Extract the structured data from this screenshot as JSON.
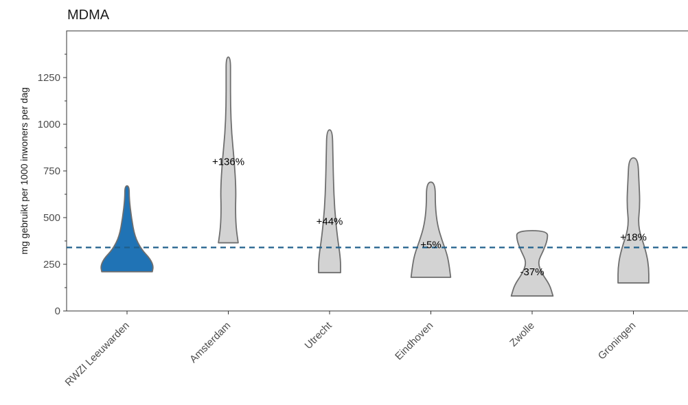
{
  "chart_data": {
    "type": "violin",
    "title": "MDMA",
    "xlabel": "",
    "ylabel": "mg gebruikt per 1000 inwoners per dag",
    "ylim": [
      0,
      1500
    ],
    "yticks": [
      0,
      250,
      500,
      750,
      1000,
      1250
    ],
    "reference_line": 340,
    "reference_color": "#1f5f8b",
    "categories": [
      "RWZI Leeuwarden",
      "Amsterdam",
      "Utrecht",
      "Eindhoven",
      "Zwolle",
      "Groningen"
    ],
    "series": [
      {
        "category": "RWZI Leeuwarden",
        "min": 210,
        "max": 670,
        "highlight": true,
        "profile": [
          [
            210,
            0.23
          ],
          [
            240,
            0.24
          ],
          [
            280,
            0.21
          ],
          [
            330,
            0.13
          ],
          [
            400,
            0.07
          ],
          [
            500,
            0.04
          ],
          [
            600,
            0.02
          ],
          [
            670,
            0.02
          ]
        ]
      },
      {
        "category": "Amsterdam",
        "min": 365,
        "max": 1360,
        "label": "+136%",
        "profile": [
          [
            365,
            0.09
          ],
          [
            450,
            0.07
          ],
          [
            550,
            0.065
          ],
          [
            650,
            0.07
          ],
          [
            800,
            0.055
          ],
          [
            950,
            0.03
          ],
          [
            1100,
            0.02
          ],
          [
            1250,
            0.02
          ],
          [
            1360,
            0.02
          ]
        ]
      },
      {
        "category": "Utrecht",
        "min": 205,
        "max": 970,
        "label": "+44%",
        "profile": [
          [
            205,
            0.1
          ],
          [
            280,
            0.1
          ],
          [
            400,
            0.07
          ],
          [
            550,
            0.045
          ],
          [
            700,
            0.035
          ],
          [
            850,
            0.03
          ],
          [
            970,
            0.025
          ]
        ]
      },
      {
        "category": "Eindhoven",
        "min": 180,
        "max": 690,
        "label": "+5%",
        "profile": [
          [
            180,
            0.18
          ],
          [
            230,
            0.17
          ],
          [
            300,
            0.15
          ],
          [
            380,
            0.1
          ],
          [
            460,
            0.06
          ],
          [
            560,
            0.04
          ],
          [
            690,
            0.04
          ]
        ]
      },
      {
        "category": "Zwolle",
        "min": 80,
        "max": 430,
        "label": "-37%",
        "profile": [
          [
            80,
            0.19
          ],
          [
            140,
            0.16
          ],
          [
            200,
            0.09
          ],
          [
            260,
            0.05
          ],
          [
            320,
            0.1
          ],
          [
            380,
            0.14
          ],
          [
            430,
            0.14
          ]
        ]
      },
      {
        "category": "Groningen",
        "min": 150,
        "max": 820,
        "label": "+18%",
        "profile": [
          [
            150,
            0.14
          ],
          [
            240,
            0.14
          ],
          [
            330,
            0.11
          ],
          [
            450,
            0.04
          ],
          [
            570,
            0.06
          ],
          [
            700,
            0.05
          ],
          [
            820,
            0.04
          ]
        ]
      }
    ],
    "colors": {
      "highlight": "#2073b5",
      "default": "#d3d3d3",
      "outline": "#6e6e6e"
    },
    "grid": false,
    "legend": "none"
  }
}
